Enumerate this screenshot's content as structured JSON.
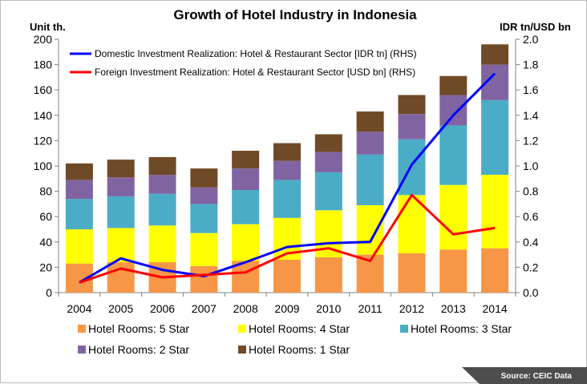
{
  "chart_data": {
    "type": "bar",
    "title": "Growth of Hotel Industry in Indonesia",
    "ylabel": "Unit th.",
    "y2label": "IDR tn/USD bn",
    "ylim": [
      0,
      200
    ],
    "y2lim": [
      0,
      2.0
    ],
    "yticks": [
      "0",
      "20",
      "40",
      "60",
      "80",
      "100",
      "120",
      "140",
      "160",
      "180",
      "200"
    ],
    "y2ticks": [
      "0.0",
      "0.2",
      "0.4",
      "0.6",
      "0.8",
      "1.0",
      "1.2",
      "1.4",
      "1.6",
      "1.8",
      "2.0"
    ],
    "categories": [
      "2004",
      "2005",
      "2006",
      "2007",
      "2008",
      "2009",
      "2010",
      "2011",
      "2012",
      "2013",
      "2014"
    ],
    "stacked": true,
    "grid": false,
    "series": [
      {
        "name": "Hotel Rooms: 5 Star",
        "type": "bar",
        "color": "#f79646",
        "values": [
          23,
          24,
          24,
          21,
          25,
          26,
          28,
          30,
          31,
          34,
          35
        ]
      },
      {
        "name": "Hotel Rooms: 4 Star",
        "type": "bar",
        "color": "#ffff00",
        "values": [
          27,
          27,
          29,
          26,
          29,
          33,
          37,
          39,
          46,
          51,
          58
        ]
      },
      {
        "name": "Hotel Rooms: 3 Star",
        "type": "bar",
        "color": "#4bacc6",
        "values": [
          24,
          25,
          25,
          23,
          27,
          30,
          30,
          40,
          44,
          47,
          59
        ]
      },
      {
        "name": "Hotel Rooms: 2 Star",
        "type": "bar",
        "color": "#8064a2",
        "values": [
          15,
          15,
          15,
          13,
          17,
          15,
          16,
          18,
          20,
          24,
          28
        ]
      },
      {
        "name": "Hotel Rooms: 1 Star",
        "type": "bar",
        "color": "#6f4a27",
        "values": [
          13,
          14,
          14,
          15,
          14,
          14,
          14,
          16,
          15,
          15,
          16
        ]
      },
      {
        "name": "Domestic Investment Realization: Hotel & Restaurant Sector [IDR tn] (RHS)",
        "type": "line",
        "axis": "right",
        "color": "#0000ff",
        "values": [
          0.08,
          0.27,
          0.18,
          0.13,
          0.24,
          0.36,
          0.39,
          0.4,
          1.01,
          1.4,
          1.73
        ]
      },
      {
        "name": "Foreign Investment Realization: Hotel & Restaurant Sector [USD bn] (RHS)",
        "type": "line",
        "axis": "right",
        "color": "#ff0000",
        "values": [
          0.08,
          0.19,
          0.12,
          0.14,
          0.16,
          0.31,
          0.35,
          0.25,
          0.77,
          0.46,
          0.51
        ]
      }
    ],
    "legend_top": "top-left",
    "legend_bottom": "bottom"
  },
  "source": "Source: CEIC Data",
  "colors": {
    "source_band": "#4d4d4d",
    "frame": "#bdbdbd"
  }
}
